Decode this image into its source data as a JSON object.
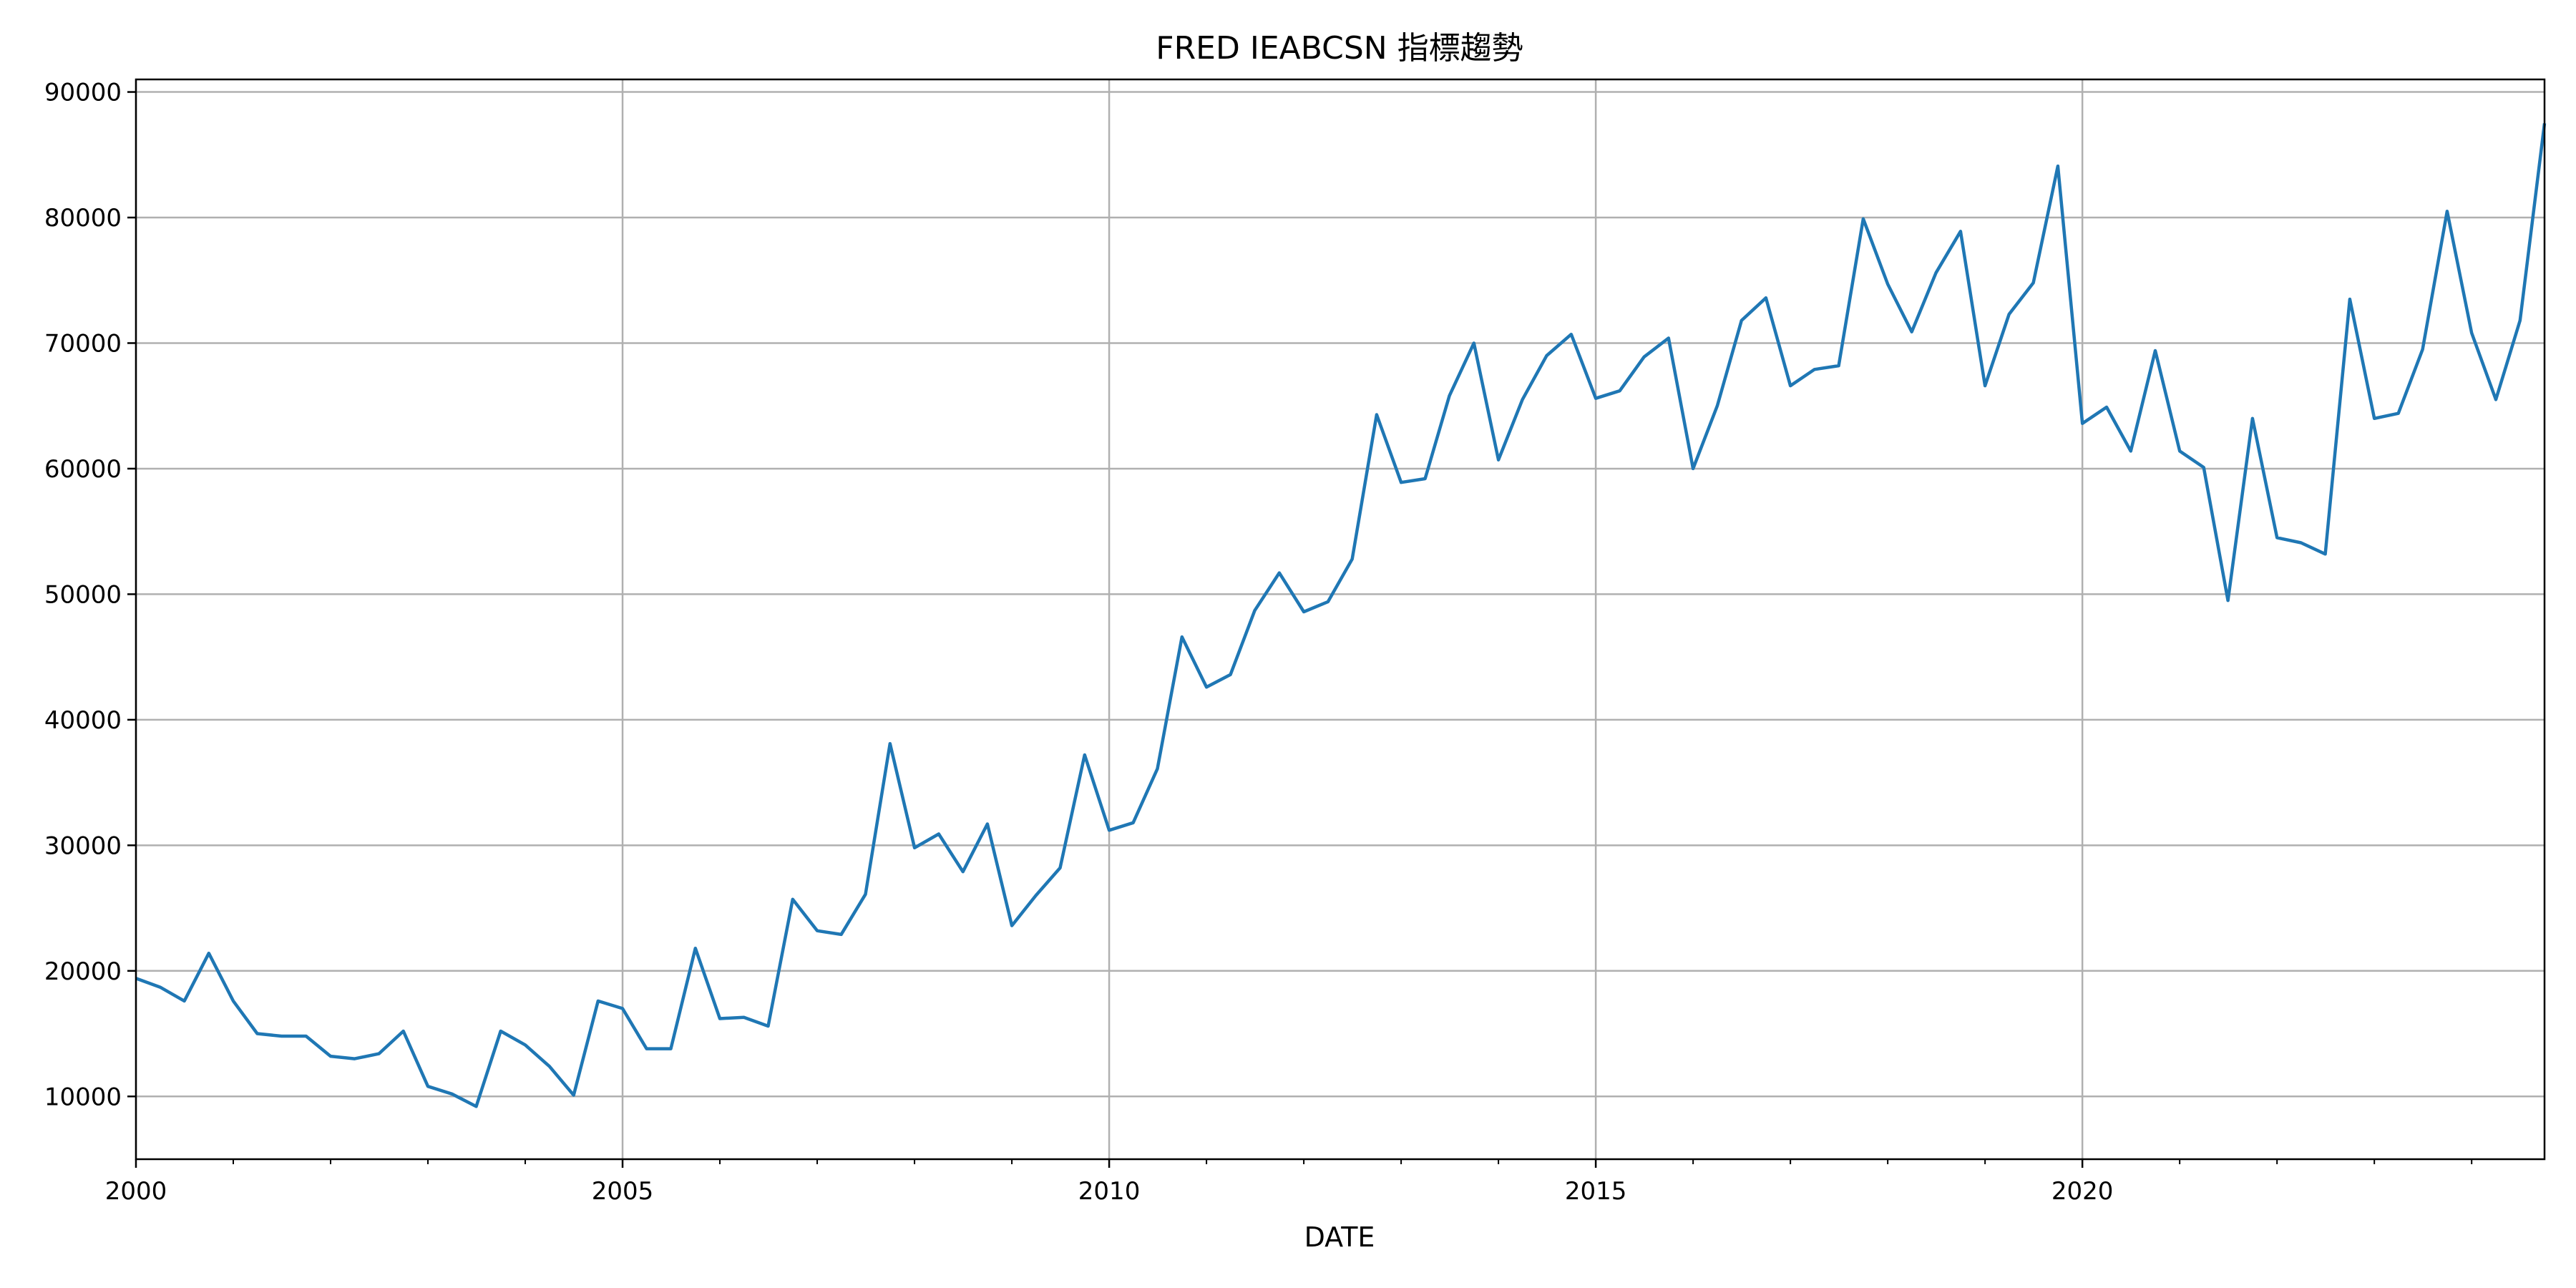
{
  "chart_data": {
    "type": "line",
    "title": "FRED IEABCSN 指標趨勢",
    "xlabel": "DATE",
    "ylabel": "",
    "xlim": [
      "2000-01-01",
      "2024-10-01"
    ],
    "ylim": [
      5000,
      91000
    ],
    "grid": true,
    "x_tick_labels": [
      "2000",
      "2005",
      "2010",
      "2015",
      "2020"
    ],
    "y_tick_labels": [
      "10000",
      "20000",
      "30000",
      "40000",
      "50000",
      "60000",
      "70000",
      "80000",
      "90000"
    ],
    "series": [
      {
        "color": "#1f77b4",
        "x": [
          "2000-01-01",
          "2000-04-01",
          "2000-07-01",
          "2000-10-01",
          "2001-01-01",
          "2001-04-01",
          "2001-07-01",
          "2001-10-01",
          "2002-01-01",
          "2002-04-01",
          "2002-07-01",
          "2002-10-01",
          "2003-01-01",
          "2003-04-01",
          "2003-07-01",
          "2003-10-01",
          "2004-01-01",
          "2004-04-01",
          "2004-07-01",
          "2004-10-01",
          "2005-01-01",
          "2005-04-01",
          "2005-07-01",
          "2005-10-01",
          "2006-01-01",
          "2006-04-01",
          "2006-07-01",
          "2006-10-01",
          "2007-01-01",
          "2007-04-01",
          "2007-07-01",
          "2007-10-01",
          "2008-01-01",
          "2008-04-01",
          "2008-07-01",
          "2008-10-01",
          "2009-01-01",
          "2009-04-01",
          "2009-07-01",
          "2009-10-01",
          "2010-01-01",
          "2010-04-01",
          "2010-07-01",
          "2010-10-01",
          "2011-01-01",
          "2011-04-01",
          "2011-07-01",
          "2011-10-01",
          "2012-01-01",
          "2012-04-01",
          "2012-07-01",
          "2012-10-01",
          "2013-01-01",
          "2013-04-01",
          "2013-07-01",
          "2013-10-01",
          "2014-01-01",
          "2014-04-01",
          "2014-07-01",
          "2014-10-01",
          "2015-01-01",
          "2015-04-01",
          "2015-07-01",
          "2015-10-01",
          "2016-01-01",
          "2016-04-01",
          "2016-07-01",
          "2016-10-01",
          "2017-01-01",
          "2017-04-01",
          "2017-07-01",
          "2017-10-01",
          "2018-01-01",
          "2018-04-01",
          "2018-07-01",
          "2018-10-01",
          "2019-01-01",
          "2019-04-01",
          "2019-07-01",
          "2019-10-01",
          "2020-01-01",
          "2020-04-01",
          "2020-07-01",
          "2020-10-01",
          "2021-01-01",
          "2021-04-01",
          "2021-07-01",
          "2021-10-01",
          "2022-01-01",
          "2022-04-01",
          "2022-07-01",
          "2022-10-01",
          "2023-01-01",
          "2023-04-01",
          "2023-07-01",
          "2023-10-01",
          "2024-01-01",
          "2024-04-01",
          "2024-07-01",
          "2024-10-01"
        ],
        "values": [
          19400,
          18700,
          17600,
          21400,
          17600,
          15000,
          14800,
          14800,
          13200,
          13000,
          13400,
          15200,
          10800,
          10200,
          9200,
          15200,
          14100,
          12400,
          10100,
          17600,
          17000,
          13800,
          13800,
          21800,
          16200,
          16300,
          15600,
          25700,
          23200,
          22900,
          26100,
          38100,
          29800,
          30900,
          27900,
          31700,
          23600,
          26000,
          28200,
          37200,
          31200,
          31800,
          36100,
          46600,
          42600,
          43600,
          48700,
          51700,
          48600,
          49400,
          52800,
          64300,
          58900,
          59200,
          65800,
          70000,
          60700,
          65500,
          69000,
          70700,
          65600,
          66200,
          68900,
          70400,
          60000,
          65000,
          71800,
          73600,
          66600,
          67900,
          68200,
          79900,
          74700,
          70900,
          75600,
          78900,
          66600,
          72300,
          74800,
          84100,
          63600,
          64900,
          61400,
          69400,
          61400,
          60100,
          49500,
          64000,
          54500,
          54100,
          53200,
          73500,
          64000,
          64400,
          69500,
          80500,
          70800,
          65500,
          71800,
          87500
        ]
      }
    ]
  }
}
